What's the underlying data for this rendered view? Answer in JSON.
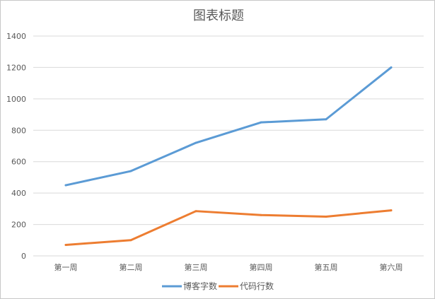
{
  "chart_data": {
    "type": "line",
    "title": "图表标题",
    "categories": [
      "第一周",
      "第二周",
      "第三周",
      "第四周",
      "第五周",
      "第六周"
    ],
    "series": [
      {
        "name": "博客字数",
        "color": "#5b9bd5",
        "values": [
          450,
          540,
          720,
          850,
          870,
          1200
        ]
      },
      {
        "name": "代码行数",
        "color": "#ed7d31",
        "values": [
          70,
          100,
          285,
          260,
          250,
          290
        ]
      }
    ],
    "yticks": [
      "0",
      "200",
      "400",
      "600",
      "800",
      "1000",
      "1200",
      "1400"
    ],
    "ylim": [
      0,
      1400
    ],
    "grid": true,
    "legend": "bottom"
  }
}
